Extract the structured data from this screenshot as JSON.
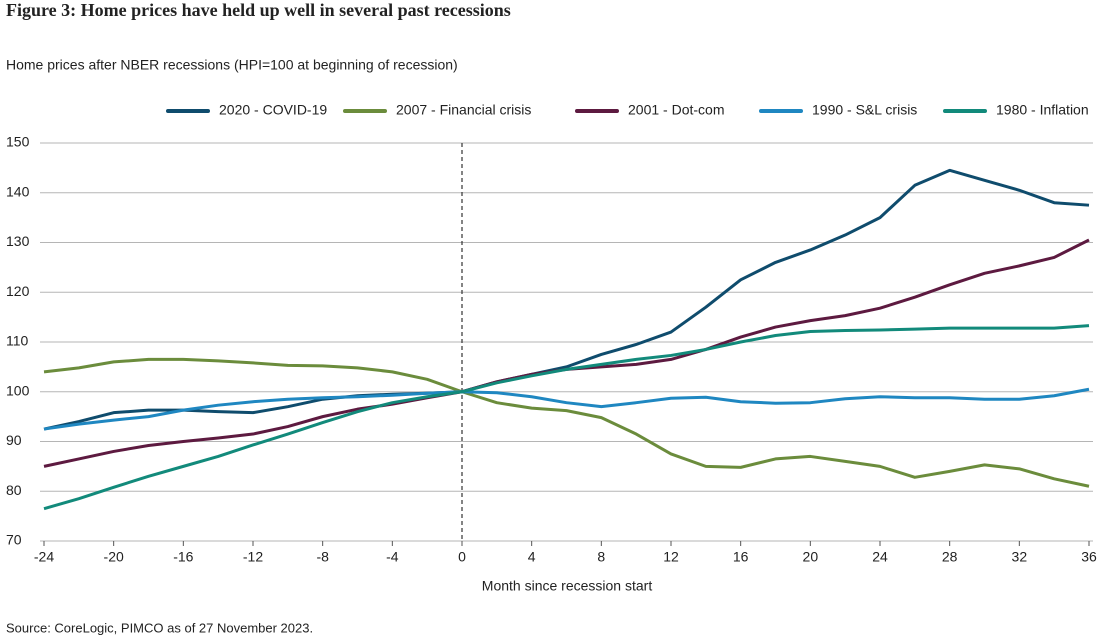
{
  "chart_data": {
    "type": "line",
    "title": "Figure 3: Home prices have held up well in several past recessions",
    "subtitle": "Home prices after NBER recessions (HPI=100 at beginning of recession)",
    "x_label": "Month since recession start",
    "source": "Source: CoreLogic, PIMCO as of 27 November 2023.",
    "x": [
      -24,
      -22,
      -20,
      -18,
      -16,
      -14,
      -12,
      -10,
      -8,
      -6,
      -4,
      -2,
      0,
      2,
      4,
      6,
      8,
      10,
      12,
      14,
      16,
      18,
      20,
      22,
      24,
      26,
      28,
      30,
      32,
      34,
      36
    ],
    "series": [
      {
        "name": "2020 - COVID-19",
        "color": "#0f4c6d",
        "values": [
          92.5,
          94,
          95.8,
          96.3,
          96.3,
          96,
          95.8,
          97,
          98.5,
          99.2,
          99.5,
          99.7,
          100,
          102,
          103.5,
          105,
          107.5,
          109.5,
          112,
          117,
          122.5,
          126,
          128.5,
          131.5,
          135,
          141.5,
          144.5,
          142.5,
          140.5,
          138,
          137.5
        ]
      },
      {
        "name": "2007 - Financial crisis",
        "color": "#6b8c3c",
        "values": [
          104,
          104.8,
          106,
          106.5,
          106.5,
          106.2,
          105.8,
          105.3,
          105.2,
          104.8,
          104,
          102.5,
          100,
          97.8,
          96.7,
          96.2,
          94.8,
          91.5,
          87.5,
          85,
          84.8,
          86.5,
          87,
          86,
          85,
          82.8,
          84,
          85.3,
          84.5,
          82.5,
          81
        ]
      },
      {
        "name": "2001 - Dot-com",
        "color": "#5d1a40",
        "values": [
          85,
          86.5,
          88,
          89.2,
          90,
          90.7,
          91.5,
          93,
          95,
          96.5,
          97.5,
          98.8,
          100,
          102,
          103.5,
          104.5,
          105,
          105.5,
          106.5,
          108.5,
          111,
          113,
          114.3,
          115.3,
          116.8,
          119,
          121.5,
          123.8,
          125.3,
          127,
          130.5
        ]
      },
      {
        "name": "1990 - S&L crisis",
        "color": "#1f87c1",
        "values": [
          92.5,
          93.5,
          94.3,
          95,
          96.3,
          97.3,
          98,
          98.5,
          98.8,
          99,
          99.3,
          99.7,
          100,
          99.8,
          99,
          97.8,
          97,
          97.8,
          98.7,
          98.9,
          98,
          97.7,
          97.8,
          98.6,
          99,
          98.8,
          98.8,
          98.5,
          98.5,
          99.2,
          100.5
        ]
      },
      {
        "name": "1980 - Inflation",
        "color": "#128a7b",
        "values": [
          76.5,
          78.5,
          80.8,
          83,
          85,
          87,
          89.3,
          91.5,
          93.8,
          96,
          97.8,
          99,
          100,
          101.8,
          103.2,
          104.5,
          105.5,
          106.5,
          107.3,
          108.5,
          110,
          111.3,
          112.1,
          112.3,
          112.4,
          112.6,
          112.8,
          112.8,
          112.8,
          112.8,
          113.3
        ]
      }
    ],
    "xlim": [
      -24,
      36
    ],
    "xticks": [
      -24,
      -20,
      -16,
      -12,
      -8,
      -4,
      0,
      4,
      8,
      12,
      16,
      20,
      24,
      28,
      32,
      36
    ],
    "ylim": [
      70,
      150
    ],
    "yticks": [
      70,
      80,
      90,
      100,
      110,
      120,
      130,
      140,
      150
    ],
    "grid": true,
    "legend": "top"
  }
}
